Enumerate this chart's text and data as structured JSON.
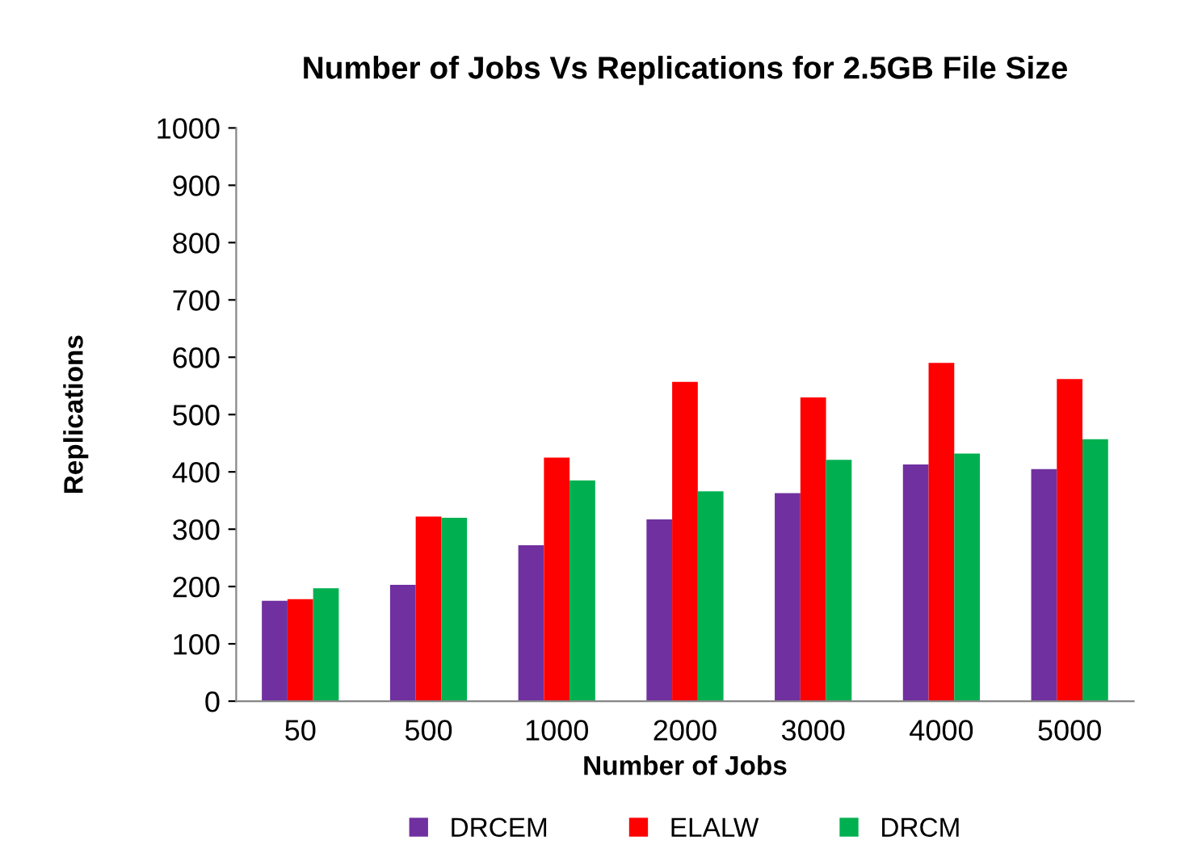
{
  "chart_data": {
    "type": "bar",
    "title": "Number of Jobs Vs Replications for 2.5GB File Size",
    "xlabel": "Number of Jobs",
    "ylabel": "Replications",
    "categories": [
      "50",
      "500",
      "1000",
      "2000",
      "3000",
      "4000",
      "5000"
    ],
    "series": [
      {
        "name": "DRCEM",
        "color": "#7030a0",
        "values": [
          175,
          203,
          272,
          317,
          363,
          413,
          405
        ]
      },
      {
        "name": "ELALW",
        "color": "#ff0000",
        "values": [
          178,
          322,
          425,
          557,
          530,
          590,
          562
        ]
      },
      {
        "name": "DRCM",
        "color": "#00b050",
        "values": [
          197,
          320,
          385,
          366,
          421,
          432,
          457
        ]
      }
    ],
    "ylim": [
      0,
      1000
    ],
    "yticks": [
      0,
      100,
      200,
      300,
      400,
      500,
      600,
      700,
      800,
      900,
      1000
    ],
    "grid": false,
    "legend": "bottom"
  }
}
